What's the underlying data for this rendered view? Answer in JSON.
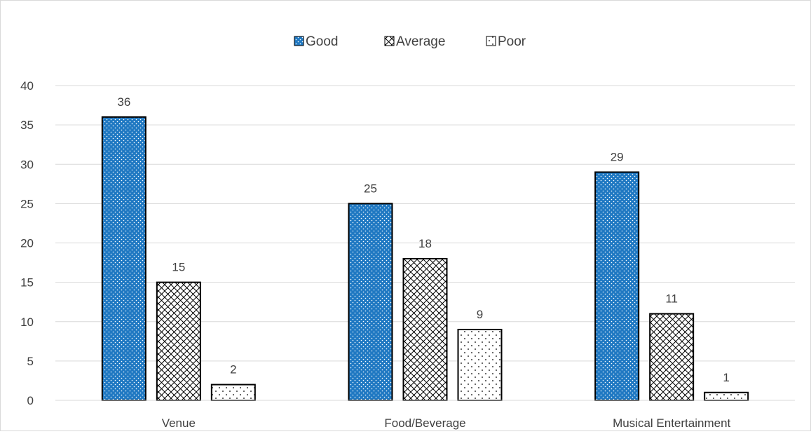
{
  "chart_data": {
    "type": "bar",
    "categories": [
      "Venue",
      "Food/Beverage",
      "Musical Entertainment"
    ],
    "series": [
      {
        "name": "Good",
        "values": [
          36,
          25,
          29
        ],
        "color": "#1f77c4",
        "pattern": "dots-on-blue"
      },
      {
        "name": "Average",
        "values": [
          15,
          18,
          11
        ],
        "color": "#000000",
        "pattern": "crosshatch"
      },
      {
        "name": "Poor",
        "values": [
          2,
          9,
          1
        ],
        "color": "#000000",
        "pattern": "sparse-dots"
      }
    ],
    "ylim": [
      0,
      40
    ],
    "yticks": [
      0,
      5,
      10,
      15,
      20,
      25,
      30,
      35,
      40
    ],
    "grid": true,
    "legend_position": "top-center",
    "data_labels": true
  }
}
